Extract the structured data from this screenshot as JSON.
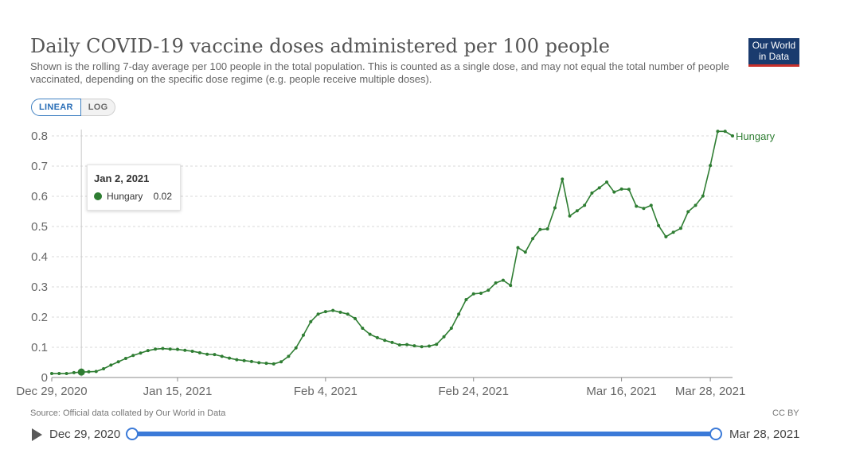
{
  "header": {
    "title": "Daily COVID-19 vaccine doses administered per 100 people",
    "subtitle": "Shown is the rolling 7-day average per 100 people in the total population. This is counted as a single dose, and may not equal the total number of people vaccinated, depending on the specific dose regime (e.g. people receive multiple doses).",
    "logo_line1": "Our World",
    "logo_line2": "in Data"
  },
  "scale_toggle": {
    "linear_label": "LINEAR",
    "log_label": "LOG",
    "selected": "LINEAR"
  },
  "tooltip": {
    "date": "Jan 2, 2021",
    "series": "Hungary",
    "value": "0.02"
  },
  "footer": {
    "source": "Source: Official data collated by Our World in Data",
    "license": "CC BY"
  },
  "timeline": {
    "start_label": "Dec 29, 2020",
    "end_label": "Mar 28, 2021"
  },
  "colors": {
    "series": "#2e7d32",
    "accent": "#3b7ad8"
  },
  "chart_data": {
    "type": "line",
    "title": "Daily COVID-19 vaccine doses administered per 100 people",
    "x_start": "2020-12-29",
    "ylim": [
      0,
      0.8
    ],
    "yticks": [
      0,
      0.1,
      0.2,
      0.3,
      0.4,
      0.5,
      0.6,
      0.7,
      0.8
    ],
    "xtick_labels": [
      "Dec 29, 2020",
      "Jan 15, 2021",
      "Feb 4, 2021",
      "Feb 24, 2021",
      "Mar 16, 2021",
      "Mar 28, 2021"
    ],
    "xtick_dates": [
      "2020-12-29",
      "2021-01-15",
      "2021-02-04",
      "2021-02-24",
      "2021-03-16",
      "2021-03-28"
    ],
    "grid": true,
    "legend": "end-of-line label",
    "highlight_date": "2021-01-02",
    "series": [
      {
        "name": "Hungary",
        "values": [
          0.013,
          0.013,
          0.013,
          0.016,
          0.018,
          0.019,
          0.02,
          0.029,
          0.041,
          0.052,
          0.063,
          0.073,
          0.081,
          0.089,
          0.094,
          0.096,
          0.094,
          0.093,
          0.09,
          0.087,
          0.082,
          0.077,
          0.076,
          0.07,
          0.064,
          0.059,
          0.056,
          0.053,
          0.049,
          0.047,
          0.045,
          0.052,
          0.07,
          0.098,
          0.14,
          0.185,
          0.21,
          0.218,
          0.222,
          0.216,
          0.21,
          0.195,
          0.163,
          0.143,
          0.132,
          0.123,
          0.116,
          0.108,
          0.109,
          0.105,
          0.102,
          0.104,
          0.11,
          0.135,
          0.163,
          0.21,
          0.258,
          0.277,
          0.279,
          0.289,
          0.313,
          0.322,
          0.305,
          0.43,
          0.415,
          0.46,
          0.49,
          0.492,
          0.562,
          0.657,
          0.535,
          0.552,
          0.57,
          0.611,
          0.628,
          0.647,
          0.614,
          0.624,
          0.623,
          0.567,
          0.56,
          0.57,
          0.503,
          0.466,
          0.481,
          0.494,
          0.549,
          0.57,
          0.601,
          0.702,
          0.815,
          0.815,
          0.8
        ]
      }
    ]
  }
}
